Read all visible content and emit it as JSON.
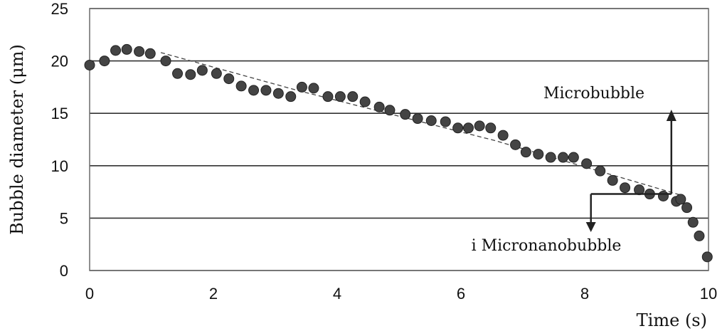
{
  "chart_data": {
    "type": "scatter",
    "title": "",
    "xlabel": "Time (s)",
    "ylabel": "Bubble diameter (μm)",
    "xlim": [
      0,
      10
    ],
    "ylim": [
      0,
      25
    ],
    "xticks": [
      "0",
      "2",
      "4",
      "6",
      "8",
      "10"
    ],
    "yticks": [
      "0",
      "5",
      "10",
      "15",
      "20",
      "25"
    ],
    "grid": "horizontal",
    "series": [
      {
        "marker": "circle",
        "color": "#444444",
        "x": [
          0.0,
          0.24,
          0.42,
          0.6,
          0.8,
          0.98,
          1.23,
          1.42,
          1.63,
          1.82,
          2.05,
          2.25,
          2.45,
          2.65,
          2.85,
          3.05,
          3.25,
          3.43,
          3.62,
          3.85,
          4.05,
          4.25,
          4.45,
          4.68,
          4.85,
          5.1,
          5.3,
          5.52,
          5.75,
          5.95,
          6.12,
          6.3,
          6.48,
          6.68,
          6.88,
          7.05,
          7.25,
          7.45,
          7.65,
          7.82,
          8.03,
          8.25,
          8.45,
          8.65,
          8.88,
          9.05,
          9.27,
          9.48,
          9.55,
          9.65,
          9.75,
          9.85,
          9.98
        ],
        "y": [
          19.6,
          20.0,
          21.0,
          21.1,
          20.9,
          20.7,
          20.0,
          18.8,
          18.7,
          19.1,
          18.8,
          18.3,
          17.6,
          17.2,
          17.2,
          16.9,
          16.6,
          17.5,
          17.4,
          16.6,
          16.6,
          16.6,
          16.1,
          15.6,
          15.3,
          14.9,
          14.5,
          14.3,
          14.2,
          13.6,
          13.6,
          13.8,
          13.6,
          12.9,
          12.0,
          11.3,
          11.1,
          10.8,
          10.8,
          10.8,
          10.2,
          9.5,
          8.6,
          7.9,
          7.7,
          7.3,
          7.1,
          6.6,
          6.8,
          6.0,
          4.6,
          3.3,
          1.3
        ]
      }
    ],
    "trend_lines": [
      {
        "style": "dashed",
        "points": [
          [
            1.15,
            20.8
          ],
          [
            3.35,
            17.2
          ],
          [
            6.55,
            12.4
          ],
          [
            9.55,
            7.2
          ]
        ]
      }
    ],
    "annotations": [
      {
        "text": "Microbubble",
        "arrow": "up",
        "anchor": [
          9.4,
          7.3
        ]
      },
      {
        "text": "i Micronanobubble",
        "arrow": "down",
        "anchor": [
          8.1,
          7.3
        ]
      }
    ]
  }
}
